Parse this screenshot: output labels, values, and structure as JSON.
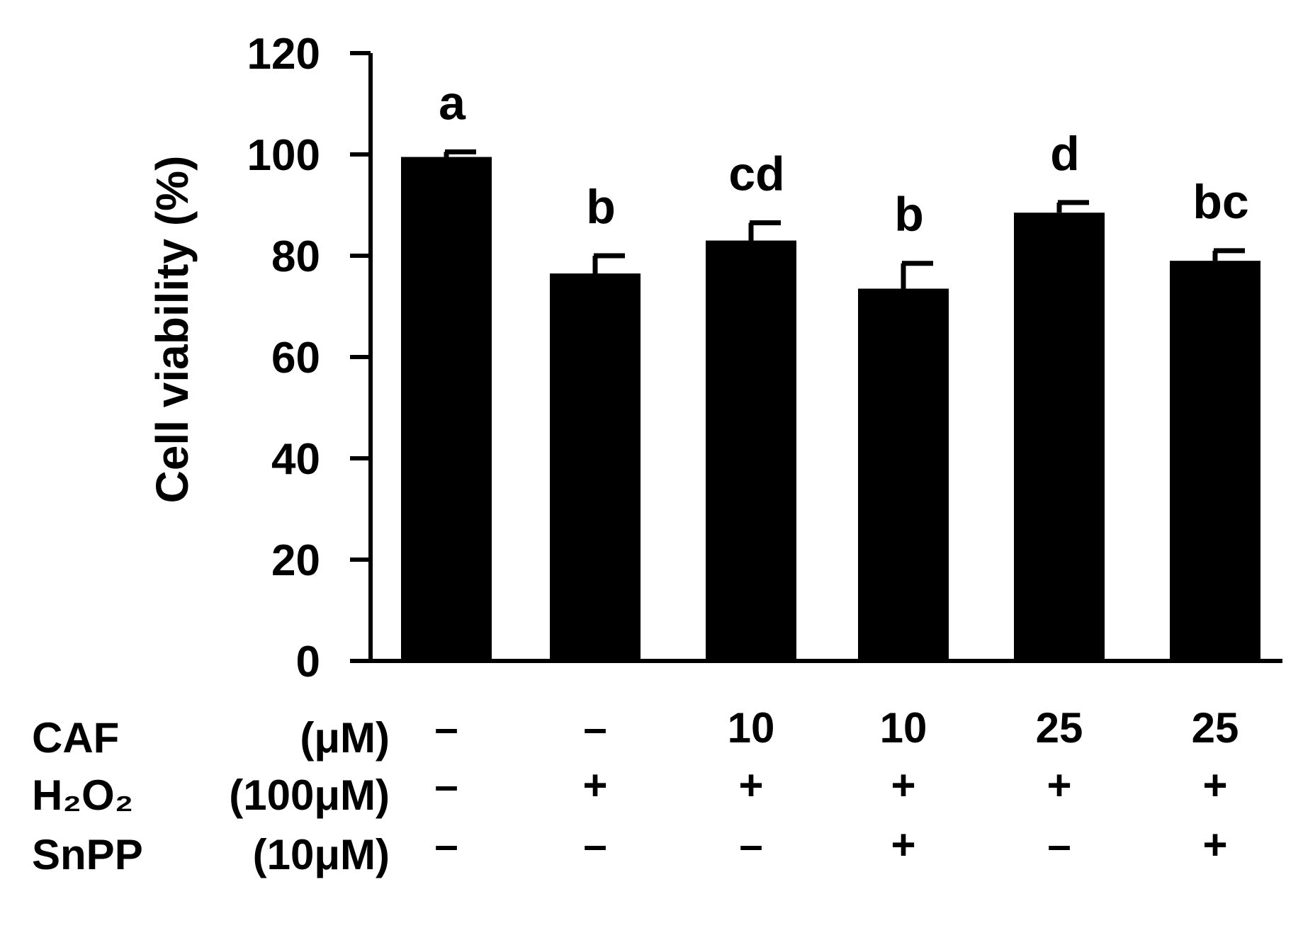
{
  "chart_data": {
    "type": "bar",
    "ylabel": "Cell viability (%)",
    "ylim": [
      0,
      120
    ],
    "yticks": [
      "0",
      "20",
      "40",
      "60",
      "80",
      "100",
      "120"
    ],
    "grid": false,
    "bar_color": "#000000",
    "values": [
      99.5,
      76.5,
      83.0,
      73.5,
      88.5,
      79.0
    ],
    "errors": [
      1.0,
      3.5,
      3.5,
      5.0,
      2.0,
      2.0
    ],
    "significance": [
      "a",
      "b",
      "cd",
      "b",
      "d",
      "bc"
    ],
    "treatments": [
      {
        "name": "CAF",
        "unit": "(μM)",
        "values": [
          "–",
          "–",
          "10",
          "10",
          "25",
          "25"
        ]
      },
      {
        "name": "H₂O₂",
        "unit": "(100μM)",
        "values": [
          "–",
          "+",
          "+",
          "+",
          "+",
          "+"
        ]
      },
      {
        "name": "SnPP",
        "unit": "(10μM)",
        "values": [
          "–",
          "–",
          "–",
          "+",
          "–",
          "+"
        ]
      }
    ]
  }
}
